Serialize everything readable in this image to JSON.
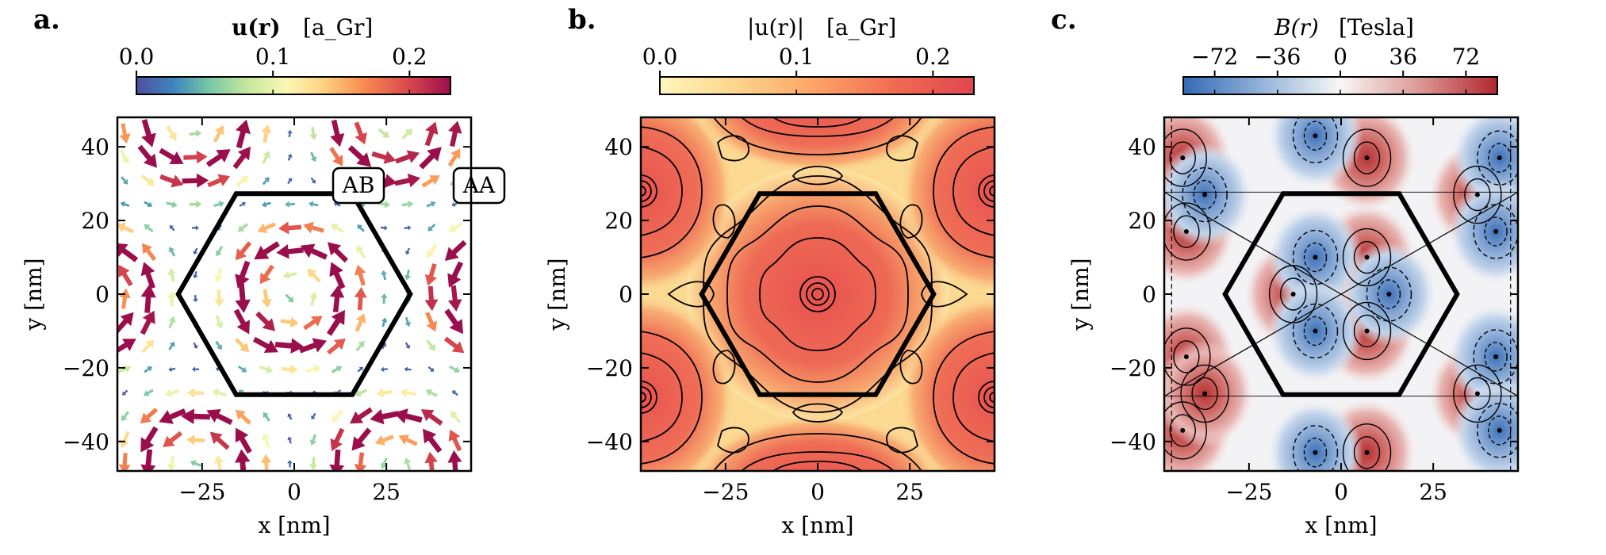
{
  "chart_data": [
    {
      "panel": "a.",
      "type": "quiver",
      "colorbar": {
        "title": "u(r)",
        "unit": "[a_Gr]",
        "ticks": [
          "0.0",
          "0.1",
          "0.2"
        ],
        "tick_values": [
          0.0,
          0.1,
          0.2
        ],
        "range": [
          0.0,
          0.23
        ],
        "colormap": "Spectral_r"
      },
      "xlabel": "x [nm]",
      "ylabel": "y [nm]",
      "xlim": [
        -48,
        48
      ],
      "ylim": [
        -48,
        48
      ],
      "xticks": [
        -25,
        0,
        25
      ],
      "yticks": [
        -40,
        -20,
        0,
        20,
        40
      ],
      "xtick_labels": [
        "−25",
        "0",
        "25"
      ],
      "ytick_labels": [
        "−40",
        "−20",
        "0",
        "20",
        "40"
      ],
      "annotations": [
        {
          "text": "AB",
          "x": 17,
          "y": 29
        },
        {
          "text": "AA",
          "x": 32,
          "y": 29
        }
      ],
      "hexagon_radius": 31.5
    },
    {
      "panel": "b.",
      "type": "contourf",
      "colorbar": {
        "title": "|u(r)|",
        "unit": "[a_Gr]",
        "ticks": [
          "0.0",
          "0.1",
          "0.2"
        ],
        "tick_values": [
          0.0,
          0.1,
          0.2
        ],
        "range": [
          0.0,
          0.23
        ],
        "colormap": "YlOrRd"
      },
      "xlabel": "x [nm]",
      "ylabel": "y [nm]",
      "xlim": [
        -48,
        48
      ],
      "ylim": [
        -48,
        48
      ],
      "xticks": [
        -25,
        0,
        25
      ],
      "yticks": [
        -40,
        -20,
        0,
        20,
        40
      ],
      "xtick_labels": [
        "−25",
        "0",
        "25"
      ],
      "ytick_labels": [
        "−40",
        "−20",
        "0",
        "20",
        "40"
      ],
      "hexagon_radius": 31.5
    },
    {
      "panel": "c.",
      "type": "contourf",
      "colorbar": {
        "title": "B(r)",
        "unit": "[Tesla]",
        "ticks": [
          "−72",
          "−36",
          "0",
          "36",
          "72"
        ],
        "tick_values": [
          -72,
          -36,
          0,
          36,
          72
        ],
        "range": [
          -90,
          90
        ],
        "colormap": "RdBu_r"
      },
      "xlabel": "x [nm]",
      "ylabel": "y [nm]",
      "xlim": [
        -48,
        48
      ],
      "ylim": [
        -48,
        48
      ],
      "xticks": [
        -25,
        0,
        25
      ],
      "yticks": [
        -40,
        -20,
        0,
        20,
        40
      ],
      "xtick_labels": [
        "−25",
        "0",
        "25"
      ],
      "ytick_labels": [
        "−40",
        "−20",
        "0",
        "20",
        "40"
      ],
      "hexagon_radius": 31.5
    }
  ]
}
